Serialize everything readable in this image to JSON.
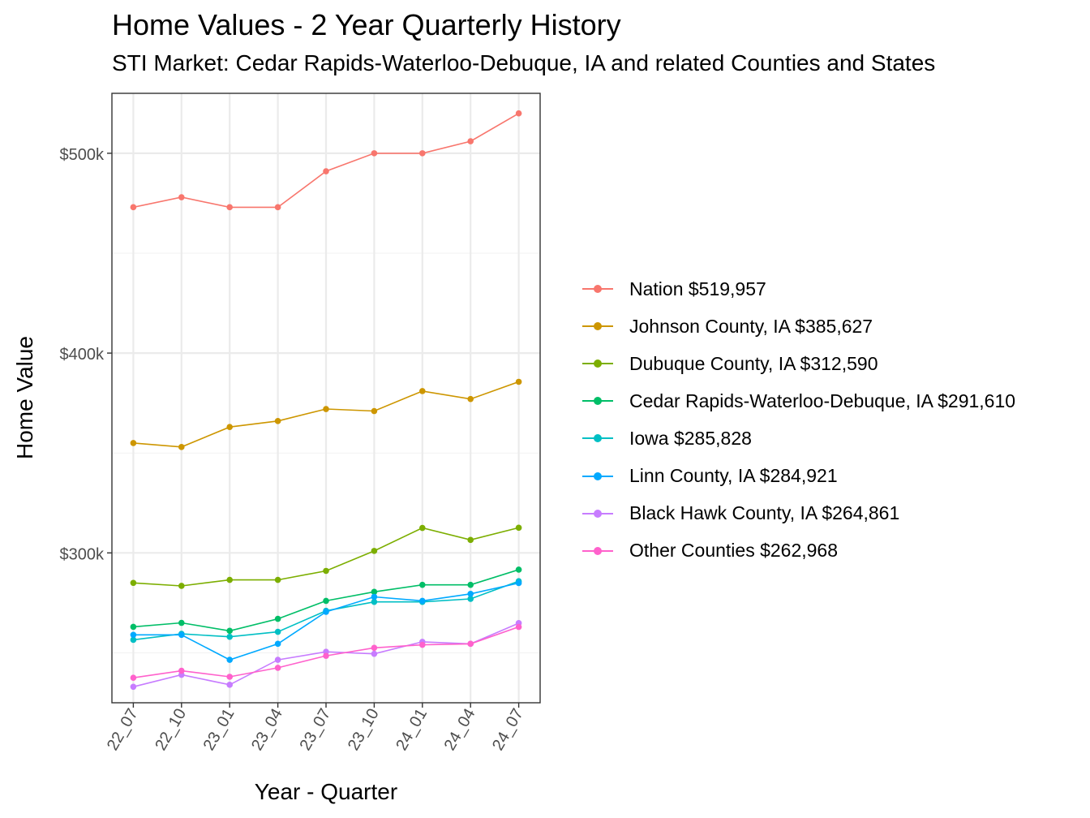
{
  "header": {
    "title": "Home Values - 2 Year Quarterly History",
    "subtitle": "STI Market: Cedar Rapids-Waterloo-Debuque, IA and related Counties and States"
  },
  "chart_data": {
    "type": "line",
    "title": "Home Values - 2 Year Quarterly History",
    "subtitle": "STI Market: Cedar Rapids-Waterloo-Debuque, IA and related Counties and States",
    "xlabel": "Year - Quarter",
    "ylabel": "Home Value",
    "categories": [
      "22_07",
      "22_10",
      "23_01",
      "23_04",
      "23_07",
      "23_10",
      "24_01",
      "24_04",
      "24_07"
    ],
    "ylim": [
      225000,
      530000
    ],
    "yticks": [
      300000,
      400000,
      500000
    ],
    "ytick_labels": [
      "$300k",
      "$400k",
      "$500k"
    ],
    "grid": true,
    "legend_position": "right",
    "series": [
      {
        "name": "Nation $519,957",
        "color": "#F8766D",
        "values": [
          473000,
          478000,
          473000,
          473000,
          491000,
          500000,
          500000,
          506000,
          519957
        ]
      },
      {
        "name": "Johnson County, IA $385,627",
        "color": "#CD9600",
        "values": [
          355000,
          353000,
          363000,
          366000,
          372000,
          371000,
          381000,
          377000,
          385627
        ]
      },
      {
        "name": "Dubuque County, IA $312,590",
        "color": "#7CAE00",
        "values": [
          285000,
          283500,
          286500,
          286500,
          291000,
          301000,
          312500,
          306500,
          312590
        ]
      },
      {
        "name": "Cedar Rapids-Waterloo-Debuque, IA $291,610",
        "color": "#00BE67",
        "values": [
          263000,
          265000,
          261000,
          267000,
          276000,
          280500,
          284000,
          284000,
          291610
        ]
      },
      {
        "name": "Iowa $285,828",
        "color": "#00BFC4",
        "values": [
          256500,
          259500,
          258000,
          260500,
          271000,
          275500,
          275500,
          277000,
          285828
        ]
      },
      {
        "name": "Linn County, IA $284,921",
        "color": "#00A9FF",
        "values": [
          259000,
          259000,
          246500,
          254500,
          270500,
          278000,
          276000,
          279500,
          284921
        ]
      },
      {
        "name": "Black Hawk County, IA $264,861",
        "color": "#C77CFF",
        "values": [
          233000,
          239000,
          234000,
          246500,
          250500,
          249500,
          255500,
          254500,
          264861
        ]
      },
      {
        "name": "Other Counties $262,968",
        "color": "#FF61CC",
        "values": [
          237500,
          241000,
          238000,
          242500,
          248500,
          252500,
          254000,
          254500,
          262968
        ]
      }
    ]
  }
}
